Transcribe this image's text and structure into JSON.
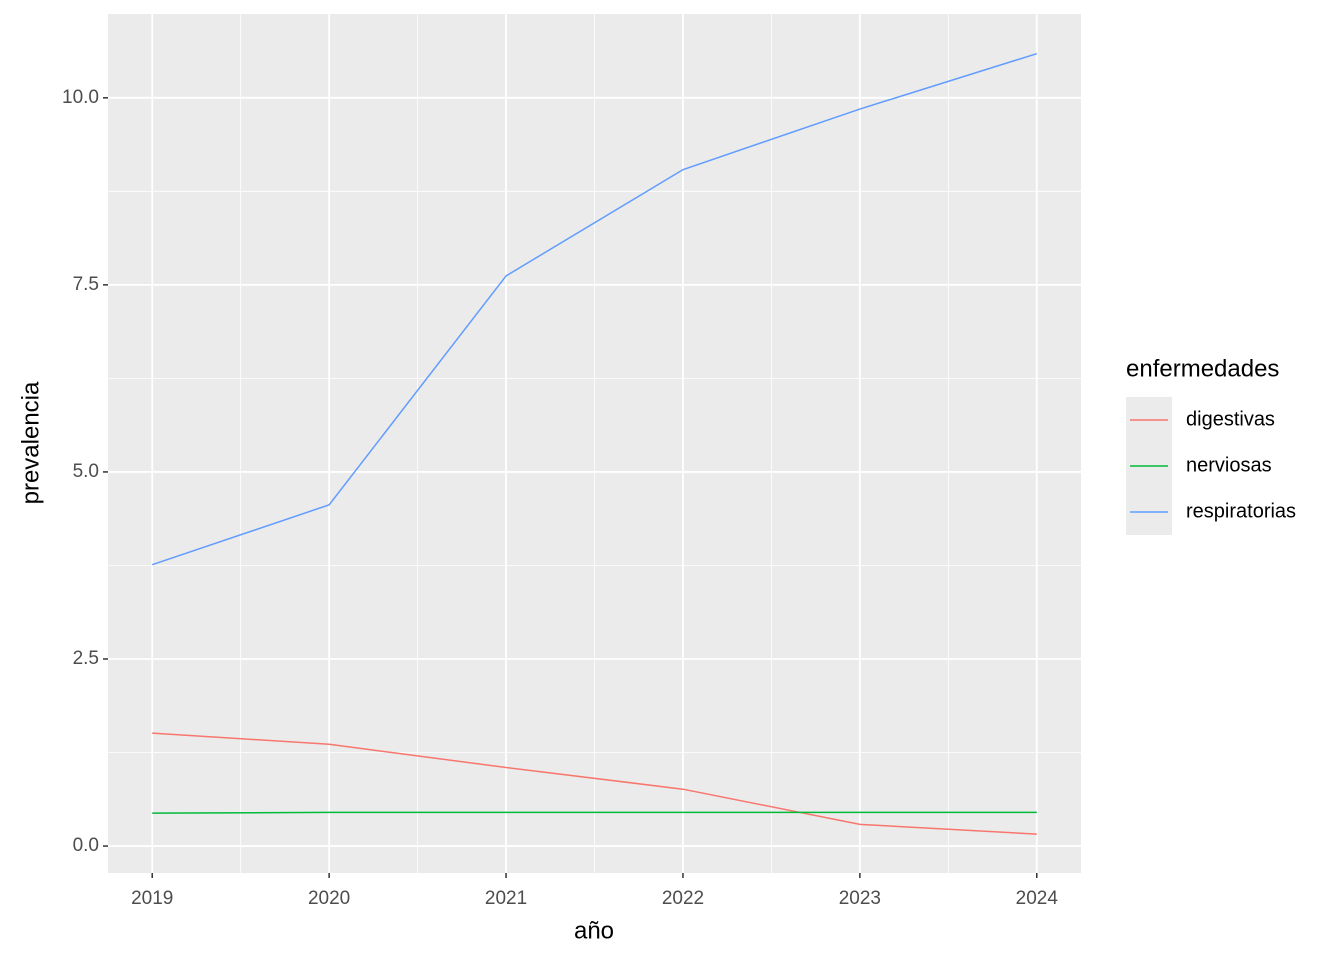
{
  "chart_data": {
    "type": "line",
    "x_label": "año",
    "y_label": "prevalencia",
    "legend_title": "enfermedades",
    "x": [
      2019,
      2020,
      2021,
      2022,
      2023,
      2024
    ],
    "series": [
      {
        "name": "digestivas",
        "color": "#F8766D",
        "values": [
          1.51,
          1.36,
          1.05,
          0.76,
          0.29,
          0.16
        ]
      },
      {
        "name": "nerviosas",
        "color": "#00BA38",
        "values": [
          0.44,
          0.45,
          0.45,
          0.45,
          0.45,
          0.45
        ]
      },
      {
        "name": "respiratorias",
        "color": "#619CFF",
        "values": [
          3.76,
          4.56,
          7.62,
          9.04,
          9.85,
          10.59
        ]
      }
    ],
    "xlim": [
      2018.75,
      2024.25
    ],
    "xticks": [
      2019,
      2020,
      2021,
      2022,
      2023,
      2024
    ],
    "ylim": [
      -0.36,
      11.12
    ],
    "yticks": [
      {
        "value": 0,
        "label": "0.0"
      },
      {
        "value": 2.5,
        "label": "2.5"
      },
      {
        "value": 5,
        "label": "5.0"
      },
      {
        "value": 7.5,
        "label": "7.5"
      },
      {
        "value": 10,
        "label": "10.0"
      }
    ],
    "grid": true,
    "legend_position": "right"
  }
}
